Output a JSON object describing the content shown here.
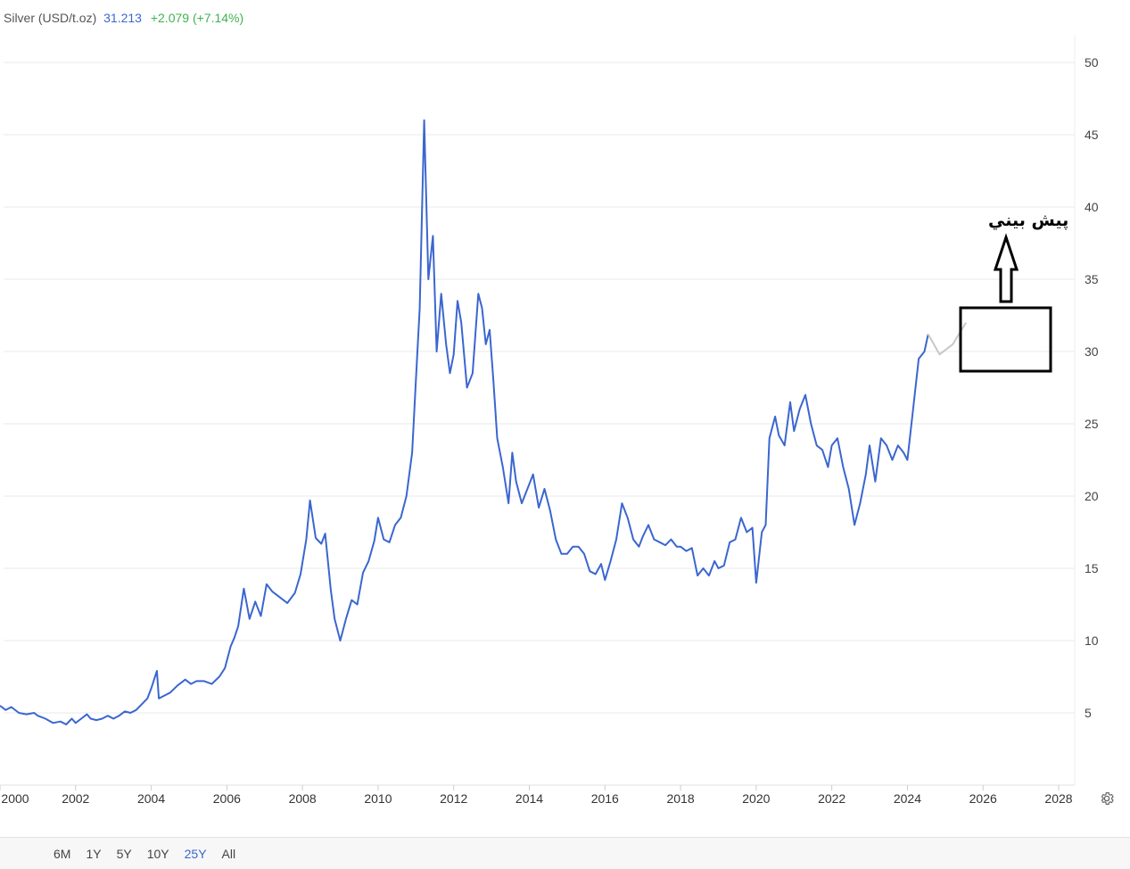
{
  "header": {
    "instrument": "Silver (USD/t.oz)",
    "price": "31.213",
    "change": "+2.079 (+7.14%)"
  },
  "colors": {
    "series": "#3b66d0",
    "forecast": "#c8c8c8",
    "change_positive": "#3fb34f",
    "active_range": "#3b66d0"
  },
  "annotation": {
    "text": "پيش بيني"
  },
  "ranges": [
    {
      "label": "6M",
      "active": false
    },
    {
      "label": "1Y",
      "active": false
    },
    {
      "label": "5Y",
      "active": false
    },
    {
      "label": "10Y",
      "active": false
    },
    {
      "label": "25Y",
      "active": true
    },
    {
      "label": "All",
      "active": false
    }
  ],
  "settings_icon": "gear-icon",
  "chart_data": {
    "type": "line",
    "title": "",
    "xlabel": "",
    "ylabel": "",
    "xlim": [
      2000,
      2028
    ],
    "ylim": [
      0,
      50
    ],
    "y_ticks": [
      5,
      10,
      15,
      20,
      25,
      30,
      35,
      40,
      45,
      50
    ],
    "x_ticks": [
      "2000",
      "2002",
      "2004",
      "2006",
      "2008",
      "2010",
      "2012",
      "2014",
      "2016",
      "2018",
      "2020",
      "2022",
      "2024",
      "2026",
      "2028"
    ],
    "grid": true,
    "y_axis_position": "right",
    "series": [
      {
        "role": "historical",
        "x": [
          2000.0,
          2000.15,
          2000.3,
          2000.5,
          2000.7,
          2000.9,
          2001.0,
          2001.2,
          2001.4,
          2001.6,
          2001.75,
          2001.9,
          2002.0,
          2002.15,
          2002.3,
          2002.4,
          2002.55,
          2002.7,
          2002.85,
          2003.0,
          2003.15,
          2003.3,
          2003.45,
          2003.6,
          2003.75,
          2003.9,
          2004.0,
          2004.15,
          2004.2,
          2004.35,
          2004.5,
          2004.7,
          2004.9,
          2005.05,
          2005.2,
          2005.4,
          2005.6,
          2005.8,
          2005.95,
          2006.1,
          2006.2,
          2006.3,
          2006.45,
          2006.6,
          2006.75,
          2006.9,
          2007.05,
          2007.2,
          2007.4,
          2007.6,
          2007.8,
          2007.95,
          2008.1,
          2008.2,
          2008.35,
          2008.5,
          2008.6,
          2008.75,
          2008.85,
          2009.0,
          2009.15,
          2009.3,
          2009.45,
          2009.6,
          2009.75,
          2009.9,
          2010.0,
          2010.15,
          2010.3,
          2010.45,
          2010.6,
          2010.75,
          2010.9,
          2011.0,
          2011.1,
          2011.22,
          2011.33,
          2011.45,
          2011.55,
          2011.67,
          2011.8,
          2011.9,
          2012.0,
          2012.1,
          2012.2,
          2012.35,
          2012.5,
          2012.65,
          2012.75,
          2012.85,
          2012.95,
          2013.05,
          2013.15,
          2013.3,
          2013.45,
          2013.55,
          2013.65,
          2013.8,
          2013.95,
          2014.1,
          2014.25,
          2014.4,
          2014.55,
          2014.7,
          2014.85,
          2015.0,
          2015.15,
          2015.3,
          2015.45,
          2015.6,
          2015.75,
          2015.9,
          2016.0,
          2016.15,
          2016.3,
          2016.45,
          2016.6,
          2016.75,
          2016.9,
          2017.0,
          2017.15,
          2017.3,
          2017.45,
          2017.6,
          2017.75,
          2017.9,
          2018.0,
          2018.15,
          2018.3,
          2018.45,
          2018.6,
          2018.75,
          2018.9,
          2019.0,
          2019.15,
          2019.3,
          2019.45,
          2019.6,
          2019.75,
          2019.9,
          2020.0,
          2020.15,
          2020.25,
          2020.35,
          2020.5,
          2020.6,
          2020.75,
          2020.9,
          2021.0,
          2021.15,
          2021.3,
          2021.45,
          2021.6,
          2021.75,
          2021.9,
          2022.0,
          2022.15,
          2022.3,
          2022.45,
          2022.6,
          2022.75,
          2022.9,
          2023.0,
          2023.15,
          2023.3,
          2023.45,
          2023.6,
          2023.75,
          2023.9,
          2024.0,
          2024.15,
          2024.3,
          2024.45,
          2024.55
        ],
        "y": [
          5.5,
          5.2,
          5.4,
          5.0,
          4.9,
          5.0,
          4.8,
          4.6,
          4.3,
          4.4,
          4.2,
          4.6,
          4.3,
          4.6,
          4.9,
          4.6,
          4.5,
          4.6,
          4.8,
          4.6,
          4.8,
          5.1,
          5.0,
          5.2,
          5.6,
          6.0,
          6.7,
          7.9,
          6.0,
          6.2,
          6.4,
          6.9,
          7.3,
          7.0,
          7.2,
          7.2,
          7.0,
          7.5,
          8.1,
          9.6,
          10.2,
          11.0,
          13.6,
          11.5,
          12.7,
          11.7,
          13.9,
          13.4,
          13.0,
          12.6,
          13.3,
          14.6,
          17.0,
          19.7,
          17.1,
          16.7,
          17.4,
          13.5,
          11.5,
          10.0,
          11.5,
          12.8,
          12.5,
          14.7,
          15.5,
          16.9,
          18.5,
          17.0,
          16.8,
          18.0,
          18.5,
          20.0,
          23.0,
          28.0,
          33.0,
          46.0,
          35.0,
          38.0,
          30.0,
          34.0,
          30.5,
          28.5,
          29.8,
          33.5,
          32.0,
          27.5,
          28.5,
          34.0,
          33.0,
          30.5,
          31.5,
          28.0,
          24.0,
          22.0,
          19.5,
          23.0,
          21.0,
          19.5,
          20.5,
          21.5,
          19.2,
          20.5,
          19.0,
          17.0,
          16.0,
          16.0,
          16.5,
          16.5,
          16.0,
          14.8,
          14.6,
          15.3,
          14.2,
          15.5,
          17.0,
          19.5,
          18.5,
          17.0,
          16.5,
          17.2,
          18.0,
          17.0,
          16.8,
          16.6,
          17.0,
          16.5,
          16.5,
          16.2,
          16.4,
          14.5,
          15.0,
          14.5,
          15.5,
          15.0,
          15.2,
          16.8,
          17.0,
          18.5,
          17.5,
          17.8,
          14.0,
          17.5,
          18.0,
          24.0,
          25.5,
          24.2,
          23.5,
          26.5,
          24.5,
          26.0,
          27.0,
          25.0,
          23.5,
          23.2,
          22.0,
          23.5,
          24.0,
          22.0,
          20.5,
          18.0,
          19.5,
          21.5,
          23.5,
          21.0,
          24.0,
          23.5,
          22.5,
          23.5,
          23.0,
          22.5,
          26.0,
          29.5,
          30.0,
          31.2
        ]
      },
      {
        "role": "forecast",
        "x": [
          2024.55,
          2024.85,
          2025.2,
          2025.55
        ],
        "y": [
          31.2,
          29.8,
          30.5,
          32.0
        ]
      }
    ]
  }
}
